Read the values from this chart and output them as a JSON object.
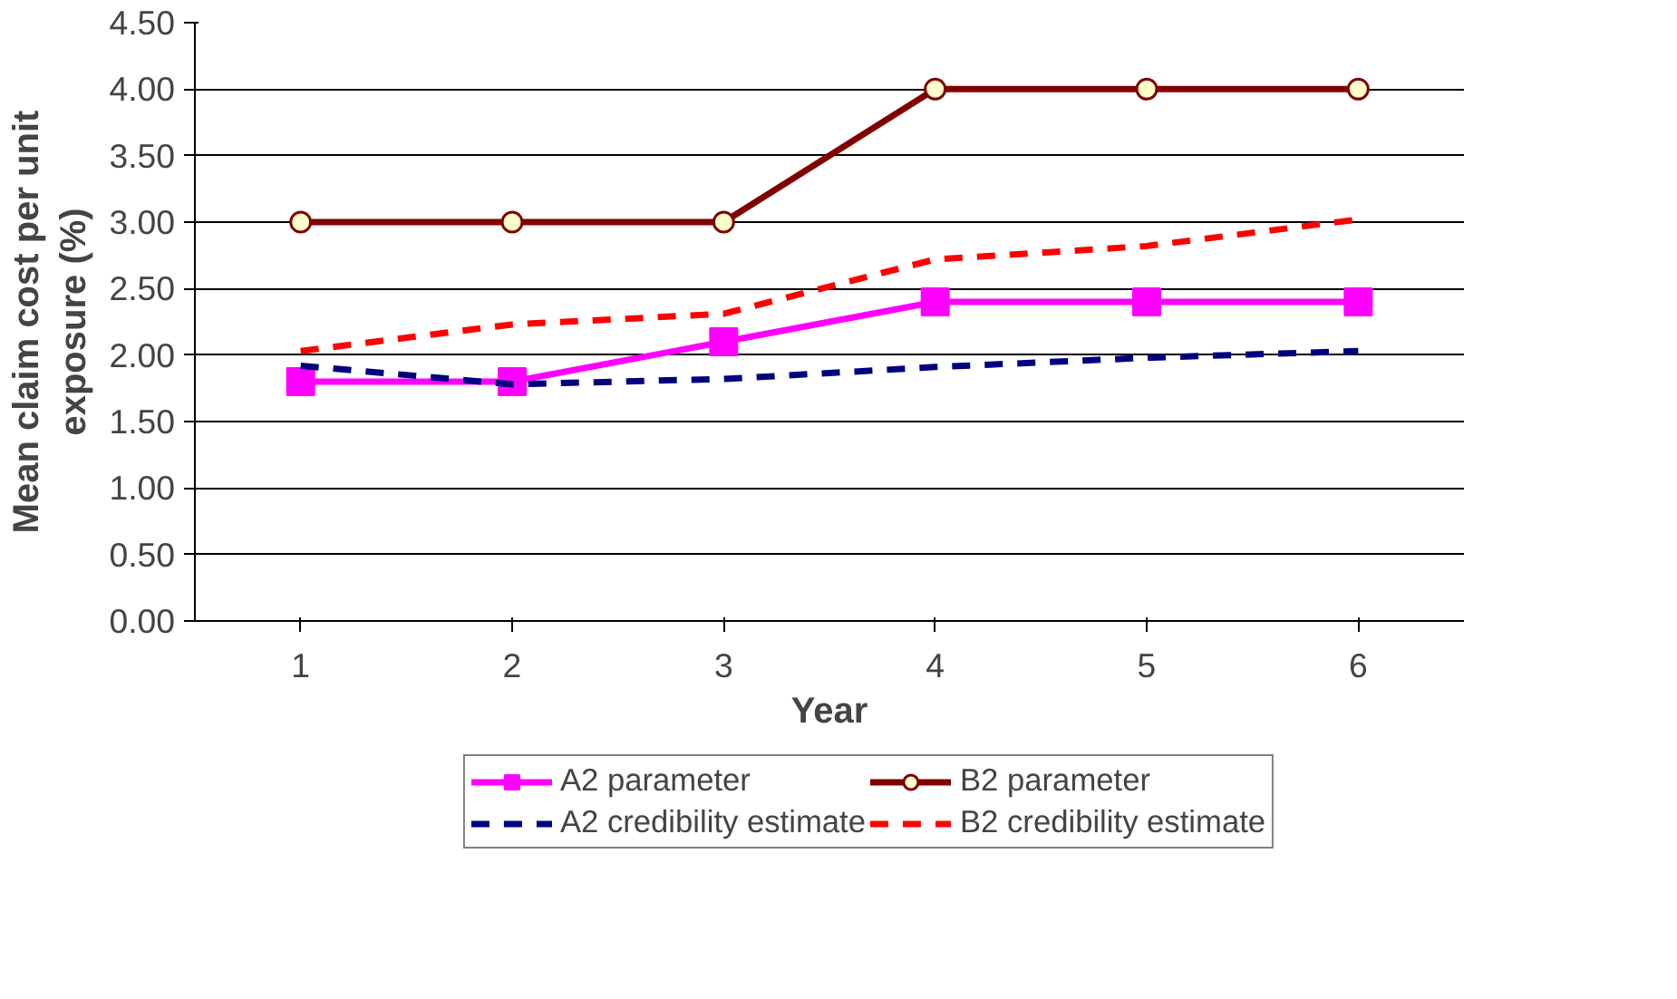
{
  "chart_data": {
    "type": "line",
    "xlabel": "Year",
    "ylabel": "Mean claim cost per unit\nexposure (%)",
    "categories": [
      "1",
      "2",
      "3",
      "4",
      "5",
      "6"
    ],
    "ylim": [
      0,
      4.5
    ],
    "yticks": [
      {
        "value": 0,
        "label": "0.00"
      },
      {
        "value": 0.5,
        "label": "0.50"
      },
      {
        "value": 1,
        "label": "1.00"
      },
      {
        "value": 1.5,
        "label": "1.50"
      },
      {
        "value": 2,
        "label": "2.00"
      },
      {
        "value": 2.5,
        "label": "2.50"
      },
      {
        "value": 3,
        "label": "3.00"
      },
      {
        "value": 3.5,
        "label": "3.50"
      },
      {
        "value": 4,
        "label": "4.00"
      },
      {
        "value": 4.5,
        "label": "4.50"
      }
    ],
    "grid": "y",
    "legend": "bottom",
    "series": [
      {
        "name": "A2 parameter",
        "color": "#ff00ff",
        "marker": "square",
        "line_style": "solid",
        "values": [
          1.8,
          1.8,
          2.1,
          2.4,
          2.4,
          2.4
        ]
      },
      {
        "name": "B2 parameter",
        "color": "#800000",
        "marker": "circle",
        "line_style": "solid",
        "values": [
          3,
          3,
          3,
          4,
          4,
          4
        ]
      },
      {
        "name": "A2 credibility estimate",
        "color": "#000080",
        "marker": "none",
        "line_style": "dashed",
        "values": [
          1.92,
          1.78,
          1.82,
          1.91,
          1.98,
          2.03
        ]
      },
      {
        "name": "B2 credibility estimate",
        "color": "#ff0000",
        "marker": "none",
        "line_style": "dashed",
        "values": [
          2.03,
          2.23,
          2.31,
          2.72,
          2.82,
          3.02
        ]
      }
    ]
  }
}
